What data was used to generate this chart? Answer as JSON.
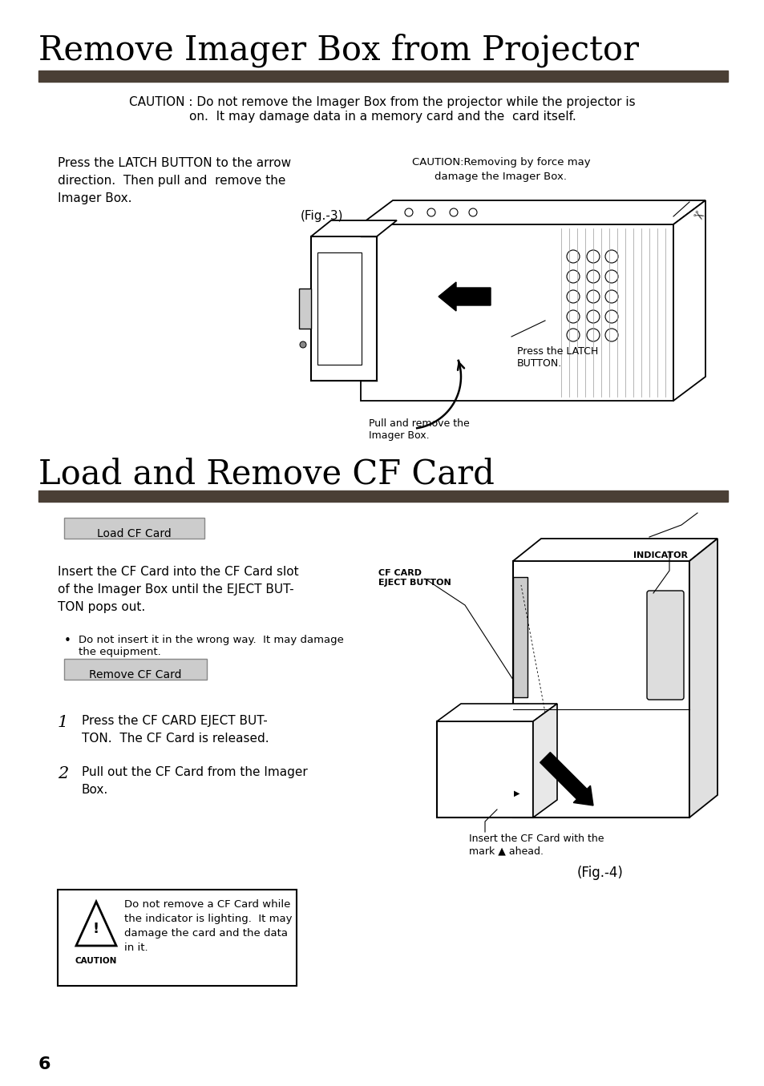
{
  "bg_color": "#ffffff",
  "title1": "Remove Imager Box from Projector",
  "title2": "Load and Remove CF Card",
  "divider_color": "#4a3f35",
  "caution_text1_line1": "CAUTION : Do not remove the Imager Box from the projector while the projector is",
  "caution_text1_line2": "on.  It may damage data in a memory card and the  card itself.",
  "section1_left_text": "Press the LATCH BUTTON to the arrow\ndirection.  Then pull and  remove the\nImager Box.",
  "section1_right_caution_line1": "CAUTION:Removing by force may",
  "section1_right_caution_line2": "damage the Imager Box.",
  "fig3_label": "(Fig.-3)",
  "press_latch_label": "Press the LATCH\nBUTTON.",
  "pull_remove_label": "Pull and remove the\nImager Box.",
  "load_cf_card_label": "Load CF Card",
  "load_cf_text": "Insert the CF Card into the CF Card slot\nof the Imager Box until the EJECT BUT-\nTON pops out.",
  "bullet_text": "Do not insert it in the wrong way.  It may damage\nthe equipment.",
  "remove_cf_card_label": "Remove CF Card",
  "step1_num": "1",
  "step1_text": "Press the CF CARD EJECT BUT-\nTON.  The CF Card is released.",
  "step2_num": "2",
  "step2_text": "Pull out the CF Card from the Imager\nBox.",
  "cf_card_eject_label": "CF CARD\nEJECT BUTTON",
  "indicator_label": "INDICATOR",
  "insert_cf_label": "Insert the CF Card with the\nmark ▲ ahead.",
  "fig4_label": "(Fig.-4)",
  "caution_box_text": "Do not remove a CF Card while\nthe indicator is lighting.  It may\ndamage the card and the data\nin it.",
  "caution_box_label": "CAUTION",
  "page_number": "6",
  "title1_fontsize": 30,
  "title2_fontsize": 30,
  "body_fontsize": 11,
  "small_fontsize": 9.5,
  "label_fontsize": 9,
  "section_label_fontsize": 10
}
